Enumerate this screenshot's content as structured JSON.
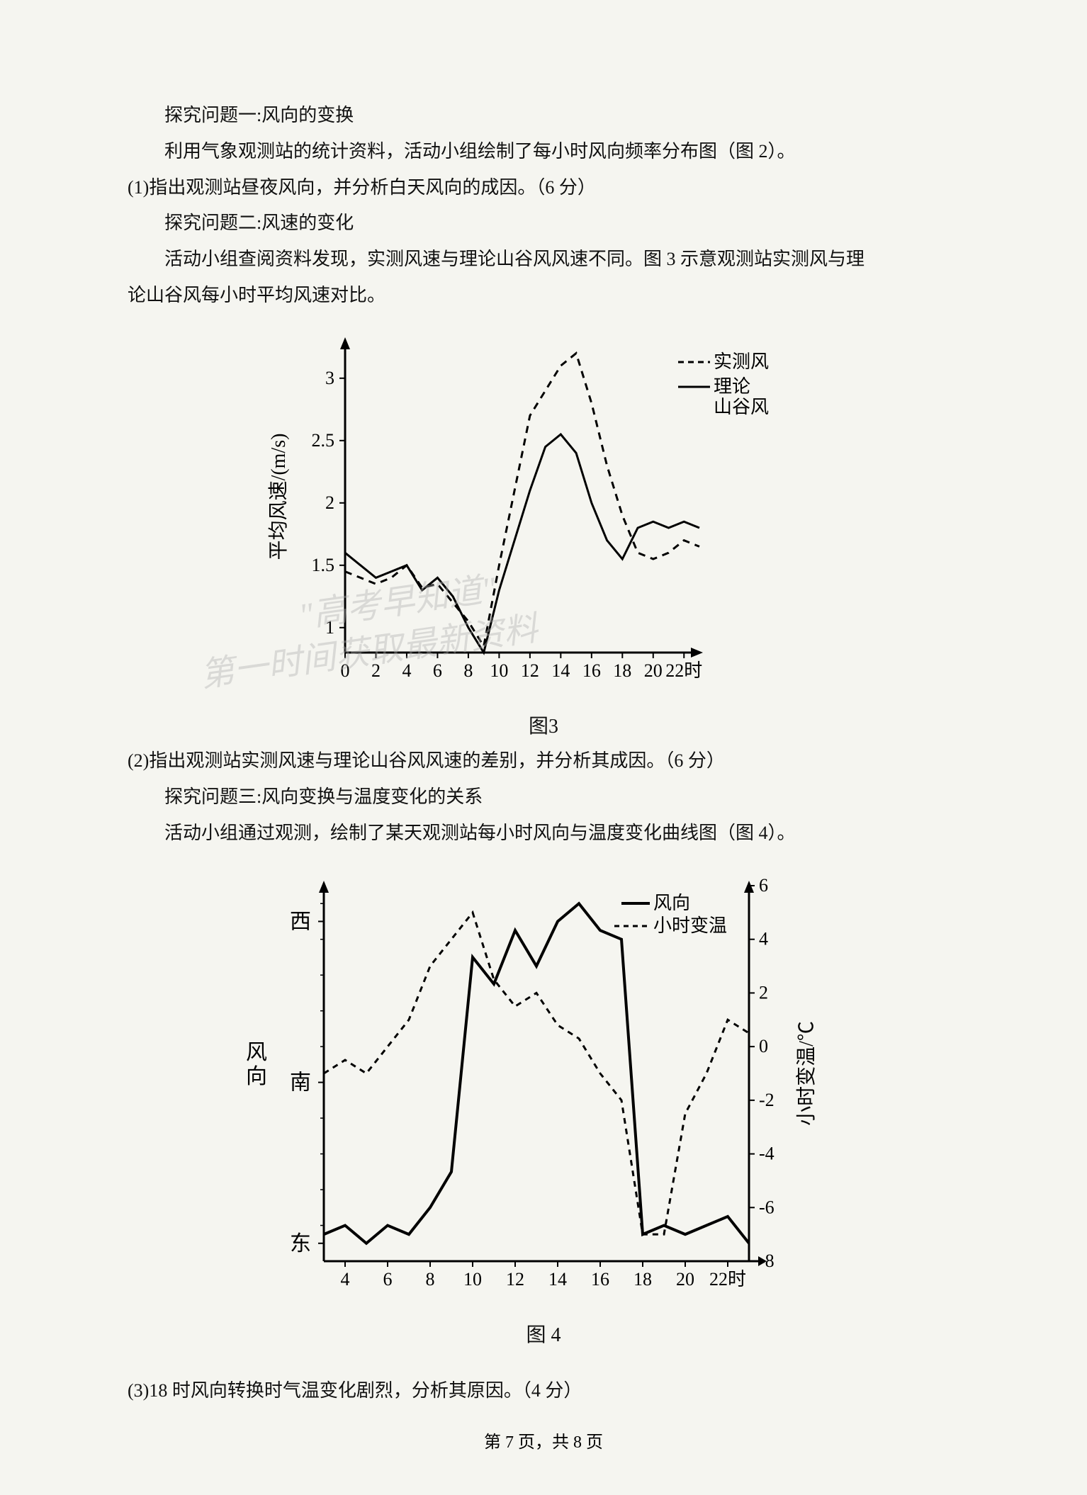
{
  "text": {
    "t1": "探究问题一:风向的变换",
    "t2": "利用气象观测站的统计资料，活动小组绘制了每小时风向频率分布图（图 2）。",
    "q1": "(1)指出观测站昼夜风向，并分析白天风向的成因。（6 分）",
    "t3": "探究问题二:风速的变化",
    "t4": "活动小组查阅资料发现，实测风速与理论山谷风风速不同。图 3 示意观测站实测风与理",
    "t5": "论山谷风每小时平均风速对比。",
    "q2": "(2)指出观测站实测风速与理论山谷风风速的差别，并分析其成因。（6 分）",
    "t6": "探究问题三:风向变换与温度变化的关系",
    "t7": "活动小组通过观测，绘制了某天观测站每小时风向与温度变化曲线图（图 4）。",
    "q3": "(3)18 时风向转换时气温变化剧烈，分析其原因。（4 分）",
    "fig3_label": "图3",
    "fig4_label": "图 4",
    "footer": "第 7 页，共 8 页"
  },
  "chart3": {
    "type": "line",
    "xlim": [
      0,
      23
    ],
    "ylim": [
      0.8,
      3.3
    ],
    "xticks": [
      0,
      2,
      4,
      6,
      8,
      10,
      12,
      14,
      16,
      18,
      20,
      22
    ],
    "xtick_label_suffix": "时",
    "yticks": [
      1,
      1.5,
      2,
      2.5,
      3
    ],
    "ylabel": "平均风速/(m/s)",
    "legend": {
      "items": [
        {
          "label": "实测风",
          "style": "dashed"
        },
        {
          "label": "理论",
          "style": "solid"
        },
        {
          "label": "山谷风",
          "style": "text_only"
        }
      ]
    },
    "line_color": "#000000",
    "background_color": "#ffffff",
    "measured": {
      "x": [
        0,
        1,
        2,
        3,
        4,
        5,
        6,
        7,
        8,
        9,
        10,
        11,
        12,
        13,
        14,
        15,
        16,
        17,
        18,
        19,
        20,
        21,
        22,
        23
      ],
      "y": [
        1.45,
        1.4,
        1.35,
        1.4,
        1.5,
        1.32,
        1.35,
        1.2,
        1.05,
        0.85,
        1.5,
        2.1,
        2.7,
        2.9,
        3.1,
        3.2,
        2.8,
        2.3,
        1.9,
        1.6,
        1.55,
        1.6,
        1.7,
        1.65
      ]
    },
    "theory": {
      "x": [
        0,
        1,
        2,
        3,
        4,
        5,
        6,
        7,
        8,
        9,
        10,
        11,
        12,
        13,
        14,
        15,
        16,
        17,
        18,
        19,
        20,
        21,
        22,
        23
      ],
      "y": [
        1.6,
        1.5,
        1.4,
        1.45,
        1.5,
        1.3,
        1.4,
        1.25,
        1.0,
        0.8,
        1.3,
        1.7,
        2.1,
        2.45,
        2.55,
        2.4,
        2.0,
        1.7,
        1.55,
        1.8,
        1.85,
        1.8,
        1.85,
        1.8
      ]
    }
  },
  "chart4": {
    "type": "dual_axis_line",
    "xlim": [
      3,
      23
    ],
    "xticks": [
      4,
      6,
      8,
      10,
      12,
      14,
      16,
      18,
      20,
      22
    ],
    "xtick_label_suffix": "时",
    "y1_categories": [
      "东",
      "南",
      "西"
    ],
    "y1_label": "风向",
    "y2_lim": [
      -8,
      6
    ],
    "y2_ticks": [
      -8,
      -6,
      -4,
      -2,
      0,
      2,
      4,
      6
    ],
    "y2_label": "小时变温/℃",
    "legend": {
      "items": [
        {
          "label": "风向",
          "style": "solid"
        },
        {
          "label": "小时变温",
          "style": "dashed"
        }
      ]
    },
    "line_color": "#000000",
    "background_color": "#ffffff",
    "wind_dir": {
      "x": [
        3,
        4,
        5,
        6,
        7,
        8,
        9,
        10,
        11,
        12,
        13,
        14,
        15,
        16,
        17,
        18,
        19,
        20,
        21,
        22,
        23
      ],
      "y": [
        95,
        100,
        90,
        100,
        95,
        110,
        130,
        250,
        235,
        265,
        245,
        270,
        280,
        265,
        260,
        95,
        100,
        95,
        100,
        105,
        90
      ]
    },
    "temp_change": {
      "x": [
        3,
        4,
        5,
        6,
        7,
        8,
        9,
        10,
        11,
        12,
        13,
        14,
        15,
        16,
        17,
        18,
        19,
        20,
        21,
        22,
        23
      ],
      "y": [
        -1,
        -0.5,
        -1,
        0,
        1,
        3,
        4,
        5,
        2.5,
        1.5,
        2,
        0.8,
        0.3,
        -1,
        -2,
        -7,
        -7,
        -2.5,
        -1,
        1,
        0.5
      ]
    }
  }
}
